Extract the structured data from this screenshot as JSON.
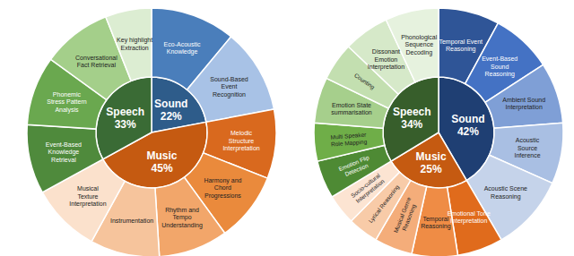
{
  "chart_data": [
    {
      "type": "sunburst",
      "data_labels": true,
      "categories": [
        "Sound",
        "Music",
        "Speech"
      ],
      "values": [
        22,
        45,
        33
      ],
      "value_labels": [
        "22%",
        "45%",
        "33%"
      ],
      "colors": [
        "#2e5c8a",
        "#c55a11",
        "#3a6b35"
      ],
      "children": [
        {
          "categories": [
            "Eco-Acoustic Knowledge",
            "Sound-Based Event Recognition"
          ],
          "values": [
            11,
            11
          ],
          "colors": [
            "#4a7ebb",
            "#a8c2e6"
          ]
        },
        {
          "categories": [
            "Melodic Structure Interpretation",
            "Harmony and Chord Progressions",
            "Rhythm and Tempo Understanding",
            "Instrumentation",
            "Musical Texture Interpretation"
          ],
          "values": [
            9,
            9,
            9,
            9,
            9
          ],
          "colors": [
            "#d9691e",
            "#ea8a3c",
            "#f2a66a",
            "#f6c49c",
            "#fbe1cc"
          ]
        },
        {
          "categories": [
            "Event-Based Knowledge Retrieval",
            "Phonemic Stress Pattern Analysis",
            "Conversational Fact Retrieval",
            "Key highlight Extraction"
          ],
          "values": [
            9,
            9,
            9,
            6
          ],
          "colors": [
            "#4f8a3c",
            "#6aa84f",
            "#a4cf8a",
            "#dcedd2"
          ]
        }
      ]
    },
    {
      "type": "sunburst",
      "data_labels": true,
      "categories": [
        "Sound",
        "Music",
        "Speech"
      ],
      "values": [
        42,
        25,
        34
      ],
      "value_labels": [
        "42%",
        "25%",
        "34%"
      ],
      "colors": [
        "#1f3f73",
        "#c55a11",
        "#375e2b"
      ],
      "children": [
        {
          "categories": [
            "Temporal Event Reasoning",
            "Event-Based Sound Reasoning",
            "Ambient Sound Interpretation",
            "Acoustic Source Inference",
            "Acoustic Scene Reasoning"
          ],
          "values": [
            8,
            8,
            8,
            8,
            10
          ],
          "colors": [
            "#2f5597",
            "#4472c4",
            "#7f9fd6",
            "#a9bfe3",
            "#c5d3ea"
          ]
        },
        {
          "categories": [
            "Emotional Tone Interpretation",
            "Temporal Reasoning",
            "Musical Genre Reasoning",
            "Lyrical Reasoning",
            "Socio-cultural Interpretation"
          ],
          "values": [
            6,
            6,
            5,
            4,
            4
          ],
          "colors": [
            "#e06b1c",
            "#ef8c45",
            "#f4ad7a",
            "#f8cba8",
            "#fce4d2"
          ]
        },
        {
          "categories": [
            "Emotion Flip Detection",
            "Multi Speaker Role Mapping",
            "Emotion State summarisation",
            "Counting",
            "Dissonant Emotion Interpretation",
            "Phonological Sequence Decoding"
          ],
          "values": [
            5,
            5,
            6,
            5,
            6,
            7
          ],
          "colors": [
            "#4e8a34",
            "#6fae48",
            "#a6cf8c",
            "#c3dfb0",
            "#d6e9c9",
            "#e6f2de"
          ]
        }
      ]
    }
  ]
}
